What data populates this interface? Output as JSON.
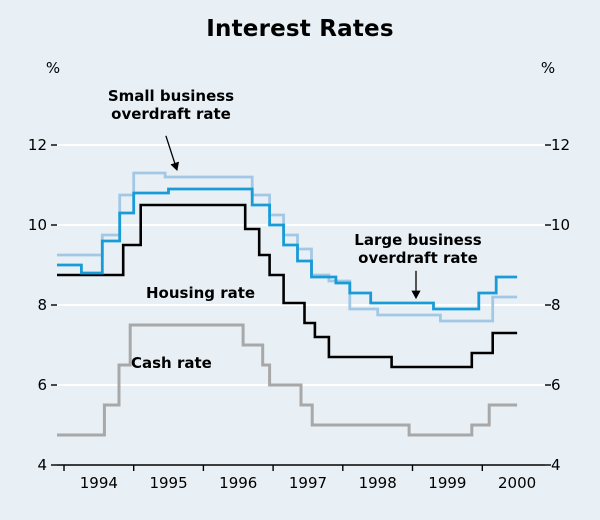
{
  "title": "Interest Rates",
  "axes": {
    "unit_left": "%",
    "unit_right": "%"
  },
  "annotations": {
    "small_business": {
      "text": "Small business\noverdraft rate",
      "target": [
        1995.62,
        11.38
      ]
    },
    "large_business": {
      "text": "Large business\noverdraft rate",
      "target": [
        1999.05,
        8.18
      ]
    },
    "housing": {
      "text": "Housing rate"
    },
    "cash": {
      "text": "Cash rate"
    }
  },
  "colors": {
    "background": "#e8f0f6",
    "grid": "#ffffff",
    "axis": "#000000",
    "small_business": "#a3c8e6",
    "large_business": "#189bd7",
    "housing": "#000000",
    "cash": "#a8a8a8"
  },
  "chart_data": {
    "type": "line",
    "line_style": "step",
    "title": "Interest Rates",
    "ylabel": "%",
    "ylim": [
      4,
      14
    ],
    "xlim": [
      1993.9,
      2000.9
    ],
    "x_end": 2000.5,
    "grid_values": [
      6,
      8,
      10,
      12
    ],
    "y_ticks": [
      4,
      6,
      8,
      10,
      12
    ],
    "x_tick_years": [
      1994,
      1995,
      1996,
      1997,
      1998,
      1999,
      2000
    ],
    "legend": "labels drawn as in-plot annotations",
    "series": [
      {
        "id": "cash",
        "name": "Cash rate",
        "color_key": "cash",
        "width": 3,
        "points": [
          [
            1993.9,
            4.75
          ],
          [
            1994.58,
            5.5
          ],
          [
            1994.79,
            6.5
          ],
          [
            1994.95,
            7.5
          ],
          [
            1996.57,
            7.0
          ],
          [
            1996.85,
            6.5
          ],
          [
            1996.95,
            6.0
          ],
          [
            1997.4,
            5.5
          ],
          [
            1997.56,
            5.0
          ],
          [
            1998.95,
            4.75
          ],
          [
            1999.85,
            5.0
          ],
          [
            2000.1,
            5.5
          ]
        ]
      },
      {
        "id": "small_business",
        "name": "Small business overdraft rate",
        "color_key": "small_business",
        "width": 2.8,
        "points": [
          [
            1993.9,
            9.25
          ],
          [
            1994.55,
            9.75
          ],
          [
            1994.8,
            10.75
          ],
          [
            1995.0,
            11.3
          ],
          [
            1995.45,
            11.2
          ],
          [
            1996.7,
            10.75
          ],
          [
            1996.95,
            10.25
          ],
          [
            1997.15,
            9.75
          ],
          [
            1997.35,
            9.4
          ],
          [
            1997.55,
            8.75
          ],
          [
            1997.8,
            8.6
          ],
          [
            1998.1,
            7.9
          ],
          [
            1998.5,
            7.75
          ],
          [
            1999.4,
            7.6
          ],
          [
            2000.15,
            8.2
          ]
        ]
      },
      {
        "id": "housing",
        "name": "Housing rate",
        "color_key": "housing",
        "width": 2.6,
        "points": [
          [
            1993.9,
            8.75
          ],
          [
            1994.85,
            9.5
          ],
          [
            1995.1,
            10.5
          ],
          [
            1996.6,
            9.9
          ],
          [
            1996.8,
            9.25
          ],
          [
            1996.95,
            8.75
          ],
          [
            1997.15,
            8.05
          ],
          [
            1997.45,
            7.55
          ],
          [
            1997.6,
            7.2
          ],
          [
            1997.8,
            6.7
          ],
          [
            1998.7,
            6.45
          ],
          [
            1999.85,
            6.8
          ],
          [
            2000.15,
            7.3
          ]
        ]
      },
      {
        "id": "large_business",
        "name": "Large business overdraft rate",
        "color_key": "large_business",
        "width": 2.8,
        "points": [
          [
            1993.9,
            9.0
          ],
          [
            1994.25,
            8.8
          ],
          [
            1994.55,
            9.6
          ],
          [
            1994.8,
            10.3
          ],
          [
            1995.0,
            10.8
          ],
          [
            1995.5,
            10.9
          ],
          [
            1996.7,
            10.5
          ],
          [
            1996.95,
            10.0
          ],
          [
            1997.15,
            9.5
          ],
          [
            1997.35,
            9.1
          ],
          [
            1997.55,
            8.7
          ],
          [
            1997.9,
            8.55
          ],
          [
            1998.1,
            8.3
          ],
          [
            1998.4,
            8.05
          ],
          [
            1999.3,
            7.9
          ],
          [
            1999.95,
            8.3
          ],
          [
            2000.2,
            8.7
          ]
        ]
      }
    ]
  }
}
